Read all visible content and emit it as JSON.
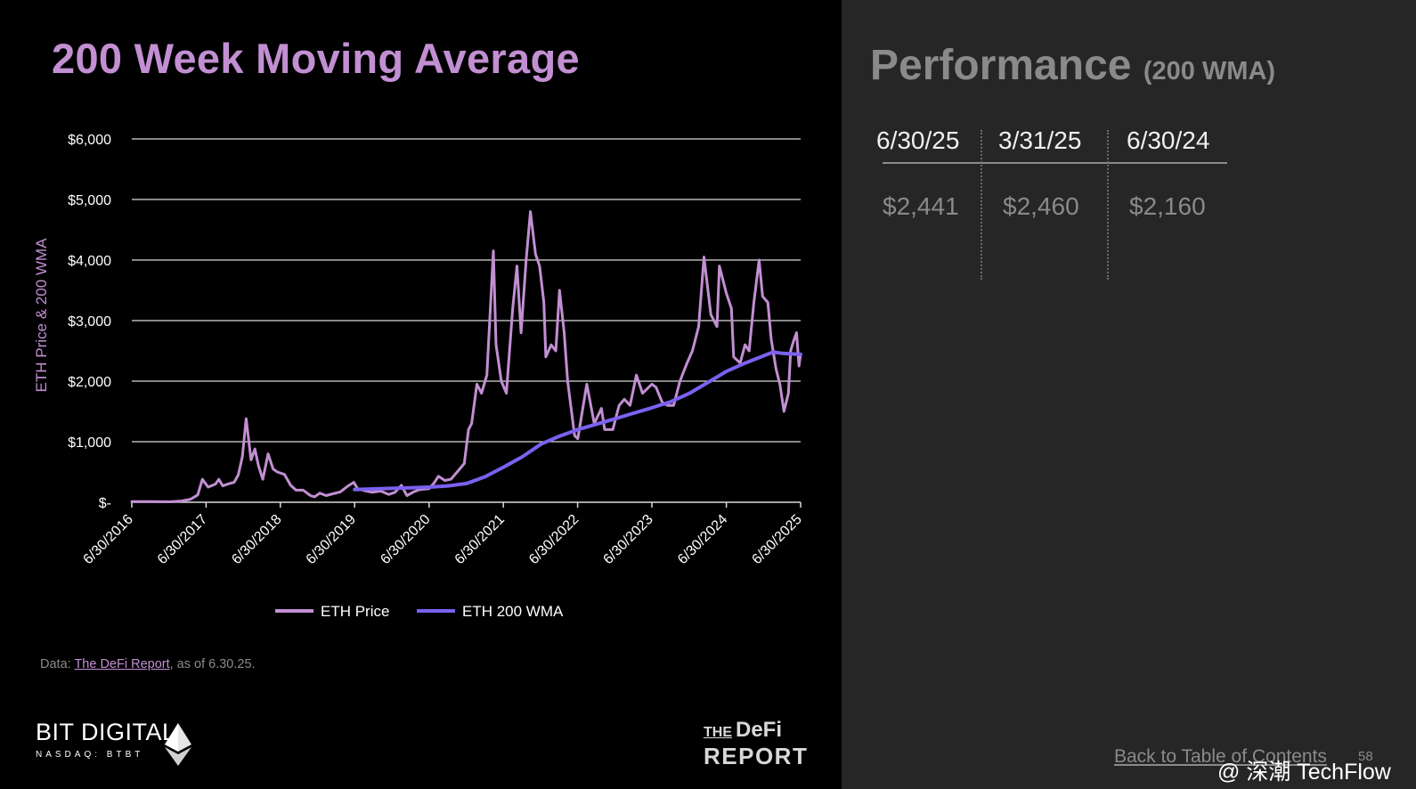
{
  "slide": {
    "title": "200 Week Moving Average",
    "source_prefix": "Data: ",
    "source_link": "The DeFi Report",
    "source_suffix": ", as of 6.30.25.",
    "logo_left_name": "BIT DIGITAL",
    "logo_left_sub": "NASDAQ: BTBT",
    "logo_right_the": "THE",
    "logo_right_defi": "DeFi",
    "logo_right_report": "REPORT",
    "back_link": "Back to Table of Contents",
    "page_number": "58",
    "watermark": "@ 深潮 TechFlow"
  },
  "performance": {
    "title": "Performance",
    "subtitle": "(200 WMA)",
    "dates": [
      "6/30/25",
      "3/31/25",
      "6/30/24"
    ],
    "values": [
      "$2,441",
      "$2,460",
      "$2,160"
    ]
  },
  "chart_data": {
    "type": "line",
    "ylabel": "ETH Price & 200 WMA",
    "xlabel": "",
    "ylim": [
      0,
      6000
    ],
    "xlim": [
      "6/30/2016",
      "6/30/2025"
    ],
    "yticks": [
      0,
      1000,
      2000,
      3000,
      4000,
      5000,
      6000
    ],
    "ytick_labels": [
      "$-",
      "$1,000",
      "$2,000",
      "$3,000",
      "$4,000",
      "$5,000",
      "$6,000"
    ],
    "xticks": [
      "2016-06-30",
      "2017-06-30",
      "2018-06-30",
      "2019-06-30",
      "2020-06-30",
      "2021-06-30",
      "2022-06-30",
      "2023-06-30",
      "2024-06-30",
      "2025-06-30"
    ],
    "xtick_labels": [
      "6/30/2016",
      "6/30/2017",
      "6/30/2018",
      "6/30/2019",
      "6/30/2020",
      "6/30/2021",
      "6/30/2022",
      "6/30/2023",
      "6/30/2024",
      "6/30/2025"
    ],
    "grid": true,
    "legend_position": "bottom-center",
    "colors": {
      "price": "#c28fd2",
      "wma": "#7b61f0",
      "grid": "#d9d9d9"
    },
    "series": [
      {
        "name": "ETH Price",
        "points": [
          [
            "2016-06-30",
            12
          ],
          [
            "2016-10-01",
            12
          ],
          [
            "2017-01-01",
            8
          ],
          [
            "2017-03-01",
            20
          ],
          [
            "2017-04-15",
            50
          ],
          [
            "2017-05-20",
            120
          ],
          [
            "2017-06-12",
            380
          ],
          [
            "2017-07-10",
            250
          ],
          [
            "2017-08-15",
            300
          ],
          [
            "2017-09-01",
            380
          ],
          [
            "2017-09-20",
            270
          ],
          [
            "2017-10-15",
            300
          ],
          [
            "2017-11-15",
            330
          ],
          [
            "2017-12-05",
            450
          ],
          [
            "2017-12-25",
            750
          ],
          [
            "2018-01-13",
            1380
          ],
          [
            "2018-02-06",
            700
          ],
          [
            "2018-02-25",
            880
          ],
          [
            "2018-03-15",
            600
          ],
          [
            "2018-04-05",
            380
          ],
          [
            "2018-05-01",
            800
          ],
          [
            "2018-05-25",
            550
          ],
          [
            "2018-06-15",
            500
          ],
          [
            "2018-07-20",
            460
          ],
          [
            "2018-08-20",
            280
          ],
          [
            "2018-09-15",
            200
          ],
          [
            "2018-10-20",
            200
          ],
          [
            "2018-11-25",
            110
          ],
          [
            "2018-12-15",
            90
          ],
          [
            "2019-01-10",
            150
          ],
          [
            "2019-02-10",
            110
          ],
          [
            "2019-03-15",
            140
          ],
          [
            "2019-04-20",
            170
          ],
          [
            "2019-05-25",
            260
          ],
          [
            "2019-06-26",
            330
          ],
          [
            "2019-07-15",
            220
          ],
          [
            "2019-08-20",
            190
          ],
          [
            "2019-09-25",
            165
          ],
          [
            "2019-11-05",
            185
          ],
          [
            "2019-12-15",
            130
          ],
          [
            "2020-01-15",
            165
          ],
          [
            "2020-02-15",
            280
          ],
          [
            "2020-03-13",
            110
          ],
          [
            "2020-04-15",
            170
          ],
          [
            "2020-05-15",
            210
          ],
          [
            "2020-06-30",
            225
          ],
          [
            "2020-07-25",
            320
          ],
          [
            "2020-08-15",
            430
          ],
          [
            "2020-09-15",
            360
          ],
          [
            "2020-10-15",
            380
          ],
          [
            "2020-11-20",
            520
          ],
          [
            "2020-12-20",
            640
          ],
          [
            "2021-01-10",
            1200
          ],
          [
            "2021-01-25",
            1300
          ],
          [
            "2021-02-20",
            1950
          ],
          [
            "2021-03-15",
            1800
          ],
          [
            "2021-04-10",
            2100
          ],
          [
            "2021-05-12",
            4150
          ],
          [
            "2021-05-25",
            2600
          ],
          [
            "2021-06-20",
            2000
          ],
          [
            "2021-07-15",
            1800
          ],
          [
            "2021-08-15",
            3200
          ],
          [
            "2021-09-05",
            3900
          ],
          [
            "2021-09-25",
            2800
          ],
          [
            "2021-10-20",
            4000
          ],
          [
            "2021-11-10",
            4800
          ],
          [
            "2021-12-05",
            4100
          ],
          [
            "2021-12-25",
            3900
          ],
          [
            "2022-01-15",
            3300
          ],
          [
            "2022-01-25",
            2400
          ],
          [
            "2022-02-20",
            2600
          ],
          [
            "2022-03-15",
            2500
          ],
          [
            "2022-04-02",
            3500
          ],
          [
            "2022-04-25",
            2800
          ],
          [
            "2022-05-12",
            2000
          ],
          [
            "2022-06-15",
            1100
          ],
          [
            "2022-07-01",
            1050
          ],
          [
            "2022-08-14",
            1950
          ],
          [
            "2022-09-20",
            1300
          ],
          [
            "2022-10-25",
            1550
          ],
          [
            "2022-11-10",
            1200
          ],
          [
            "2022-12-20",
            1200
          ],
          [
            "2023-01-20",
            1600
          ],
          [
            "2023-02-15",
            1700
          ],
          [
            "2023-03-15",
            1600
          ],
          [
            "2023-04-15",
            2100
          ],
          [
            "2023-05-15",
            1800
          ],
          [
            "2023-06-30",
            1950
          ],
          [
            "2023-07-20",
            1900
          ],
          [
            "2023-08-20",
            1650
          ],
          [
            "2023-09-15",
            1600
          ],
          [
            "2023-10-15",
            1600
          ],
          [
            "2023-11-15",
            2000
          ],
          [
            "2023-12-20",
            2300
          ],
          [
            "2024-01-15",
            2500
          ],
          [
            "2024-02-15",
            2900
          ],
          [
            "2024-03-12",
            4050
          ],
          [
            "2024-04-15",
            3100
          ],
          [
            "2024-05-15",
            2900
          ],
          [
            "2024-05-27",
            3900
          ],
          [
            "2024-06-30",
            3450
          ],
          [
            "2024-07-25",
            3200
          ],
          [
            "2024-08-05",
            2400
          ],
          [
            "2024-09-06",
            2300
          ],
          [
            "2024-09-30",
            2600
          ],
          [
            "2024-10-20",
            2500
          ],
          [
            "2024-11-12",
            3300
          ],
          [
            "2024-12-08",
            4000
          ],
          [
            "2024-12-25",
            3400
          ],
          [
            "2025-01-20",
            3300
          ],
          [
            "2025-02-05",
            2700
          ],
          [
            "2025-03-01",
            2200
          ],
          [
            "2025-03-20",
            1950
          ],
          [
            "2025-04-09",
            1500
          ],
          [
            "2025-05-01",
            1800
          ],
          [
            "2025-05-12",
            2500
          ],
          [
            "2025-05-25",
            2650
          ],
          [
            "2025-06-10",
            2800
          ],
          [
            "2025-06-22",
            2250
          ],
          [
            "2025-06-30",
            2450
          ]
        ]
      },
      {
        "name": "ETH 200 WMA",
        "points": [
          [
            "2019-06-30",
            210
          ],
          [
            "2019-09-30",
            220
          ],
          [
            "2020-01-01",
            230
          ],
          [
            "2020-04-01",
            240
          ],
          [
            "2020-06-30",
            250
          ],
          [
            "2020-10-01",
            270
          ],
          [
            "2021-01-01",
            310
          ],
          [
            "2021-04-01",
            420
          ],
          [
            "2021-07-01",
            580
          ],
          [
            "2021-10-01",
            750
          ],
          [
            "2022-01-01",
            960
          ],
          [
            "2022-04-01",
            1090
          ],
          [
            "2022-06-30",
            1200
          ],
          [
            "2022-10-01",
            1290
          ],
          [
            "2023-01-01",
            1380
          ],
          [
            "2023-04-01",
            1470
          ],
          [
            "2023-06-30",
            1560
          ],
          [
            "2023-10-01",
            1660
          ],
          [
            "2024-01-01",
            1800
          ],
          [
            "2024-04-01",
            1980
          ],
          [
            "2024-06-30",
            2160
          ],
          [
            "2024-10-01",
            2300
          ],
          [
            "2025-01-01",
            2420
          ],
          [
            "2025-02-15",
            2480
          ],
          [
            "2025-03-31",
            2460
          ],
          [
            "2025-06-30",
            2441
          ]
        ]
      }
    ]
  }
}
